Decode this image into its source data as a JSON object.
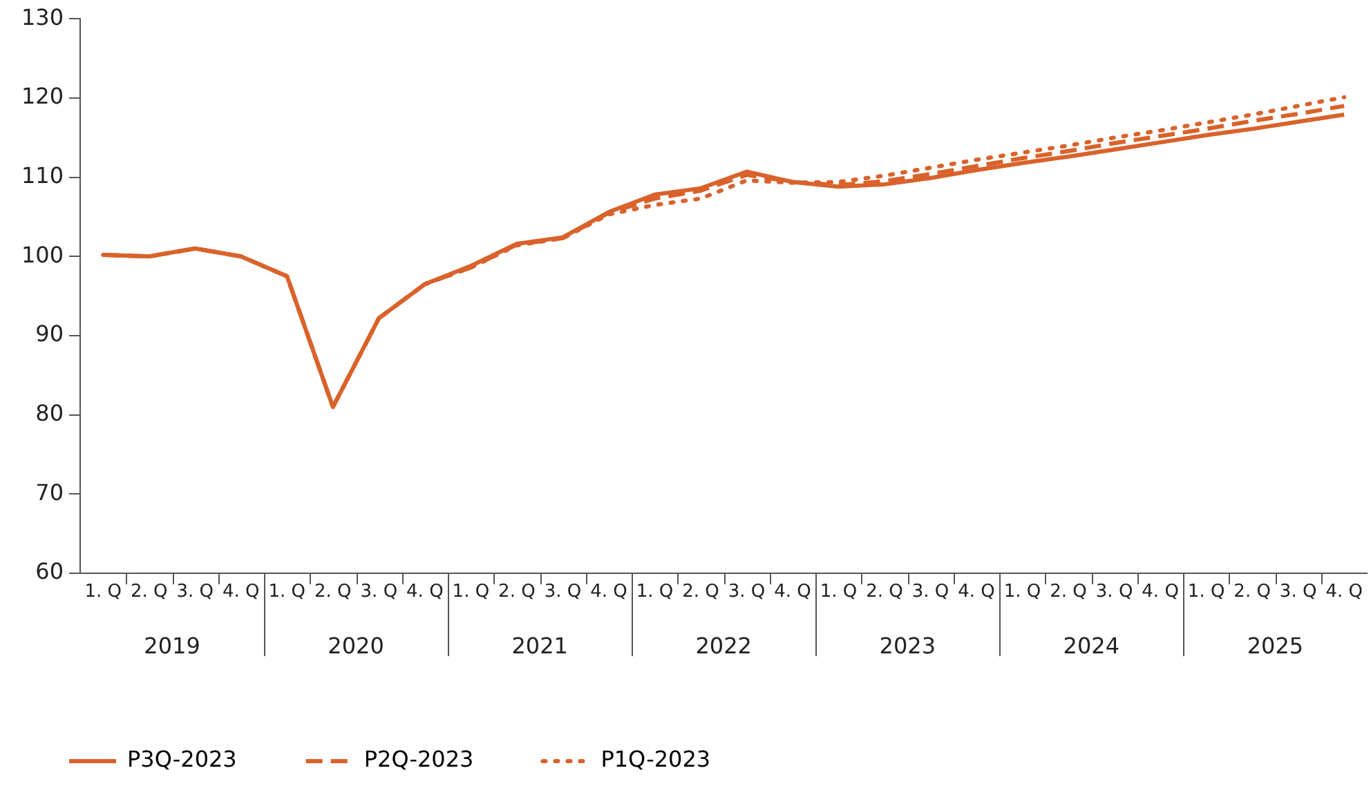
{
  "chart_data": {
    "type": "line",
    "categories": [
      "1. Q",
      "2. Q",
      "3. Q",
      "4. Q",
      "1. Q",
      "2. Q",
      "3. Q",
      "4. Q",
      "1. Q",
      "2. Q",
      "3. Q",
      "4. Q",
      "1. Q",
      "2. Q",
      "3. Q",
      "4. Q",
      "1. Q",
      "2. Q",
      "3. Q",
      "4. Q",
      "1. Q",
      "2. Q",
      "3. Q",
      "4. Q",
      "1. Q",
      "2. Q",
      "3. Q",
      "4. Q"
    ],
    "annotations": [
      "2019",
      "2020",
      "2021",
      "2022",
      "2023",
      "2024",
      "2025"
    ],
    "ylim": [
      60,
      130
    ],
    "yticks": [
      60,
      70,
      80,
      90,
      100,
      110,
      120,
      130
    ],
    "grid": false,
    "legend": "bottom left",
    "marker": "none",
    "series": [
      {
        "name": "P3Q-2023",
        "color": "#d9622b",
        "line_style": "solid",
        "values": [
          100.2,
          100,
          101,
          100,
          97.5,
          81,
          92.2,
          96.5,
          98.8,
          101.6,
          102.4,
          105.6,
          107.8,
          108.6,
          110.7,
          109.4,
          108.8,
          109.1,
          109.9,
          110.9,
          111.8,
          112.6,
          113.5,
          114.4,
          115.3,
          116.1,
          117.0,
          117.9
        ]
      },
      {
        "name": "P2Q-2023",
        "color": "#d9622b",
        "line_style": "dashed",
        "values": [
          100.2,
          100,
          101,
          100,
          97.5,
          81,
          92.2,
          96.5,
          98.6,
          101.5,
          102.3,
          105.5,
          107.3,
          108.3,
          110.3,
          109.4,
          109.0,
          109.5,
          110.4,
          111.4,
          112.4,
          113.3,
          114.3,
          115.2,
          116.1,
          117.1,
          118.0,
          119.0
        ]
      },
      {
        "name": "P1Q-2023",
        "color": "#d9622b",
        "line_style": "dotted",
        "values": [
          100.2,
          100,
          101,
          100,
          97.5,
          81,
          92.2,
          96.5,
          98.6,
          101.4,
          102.3,
          105.3,
          106.5,
          107.3,
          109.6,
          109.3,
          109.4,
          110.2,
          111.2,
          112.2,
          113.1,
          114.0,
          115.0,
          115.9,
          116.9,
          117.9,
          119.0,
          120.1
        ]
      }
    ]
  }
}
